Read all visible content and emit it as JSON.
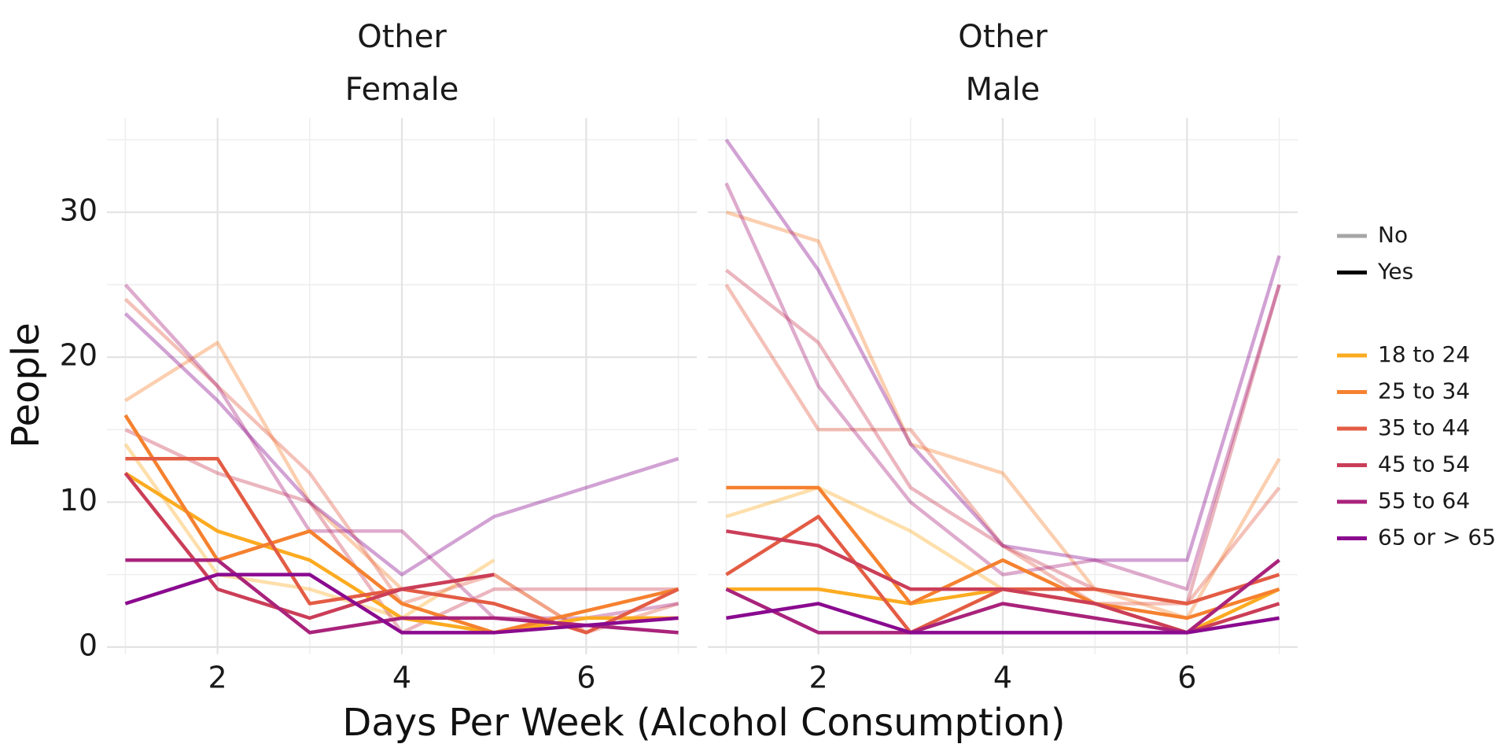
{
  "chart_data": {
    "type": "line",
    "xlabel": "Days Per Week (Alcohol Consumption)",
    "ylabel": "People",
    "x": [
      1,
      2,
      3,
      4,
      5,
      6,
      7
    ],
    "xlim": [
      0.8,
      7.2
    ],
    "ylim": [
      -0.5,
      36.5
    ],
    "x_ticks": [
      2,
      4,
      6
    ],
    "y_ticks": [
      0,
      10,
      20,
      30
    ],
    "grid": true,
    "legend_position": "right",
    "legend_groups": [
      {
        "title": "",
        "items": [
          {
            "label": "No",
            "color": "#a6a6a6"
          },
          {
            "label": "Yes",
            "color": "#000000"
          }
        ]
      },
      {
        "title": "",
        "items": [
          {
            "label": "18 to 24",
            "color": "#fcab21"
          },
          {
            "label": "25 to 34",
            "color": "#f5812f"
          },
          {
            "label": "35 to 44",
            "color": "#e35c44"
          },
          {
            "label": "45 to 54",
            "color": "#cb3e58"
          },
          {
            "label": "55 to 64",
            "color": "#a9237b"
          },
          {
            "label": "65 or > 65",
            "color": "#8a0a8f"
          }
        ]
      }
    ],
    "panels": [
      {
        "strip": [
          "Other",
          "Female"
        ],
        "series": [
          {
            "age": "18 to 24",
            "smoker": "No",
            "values": [
              14,
              5,
              4,
              2,
              6,
              null,
              null
            ]
          },
          {
            "age": "25 to 34",
            "smoker": "No",
            "values": [
              17,
              21,
              10,
              4,
              5,
              1,
              4
            ]
          },
          {
            "age": "35 to 44",
            "smoker": "No",
            "values": [
              24,
              18,
              12,
              3,
              5,
              1,
              3
            ]
          },
          {
            "age": "45 to 54",
            "smoker": "No",
            "values": [
              15,
              12,
              10,
              1,
              4,
              4,
              4
            ]
          },
          {
            "age": "55 to 64",
            "smoker": "No",
            "values": [
              25,
              18,
              8,
              8,
              2,
              2,
              3
            ]
          },
          {
            "age": "65 or > 65",
            "smoker": "No",
            "values": [
              23,
              17,
              10,
              5,
              9,
              11,
              13
            ]
          },
          {
            "age": "18 to 24",
            "smoker": "Yes",
            "values": [
              12,
              8,
              6,
              2,
              1,
              2,
              2
            ]
          },
          {
            "age": "25 to 34",
            "smoker": "Yes",
            "values": [
              16,
              6,
              8,
              3,
              1,
              2.5,
              4
            ]
          },
          {
            "age": "35 to 44",
            "smoker": "Yes",
            "values": [
              13,
              13,
              3,
              4,
              3,
              1,
              4
            ]
          },
          {
            "age": "45 to 54",
            "smoker": "Yes",
            "values": [
              12,
              4,
              2,
              4,
              5,
              null,
              null
            ]
          },
          {
            "age": "55 to 64",
            "smoker": "Yes",
            "values": [
              6,
              6,
              1,
              2,
              2,
              1.5,
              1
            ]
          },
          {
            "age": "65 or > 65",
            "smoker": "Yes",
            "values": [
              3,
              5,
              5,
              1,
              1,
              1.5,
              2
            ]
          }
        ]
      },
      {
        "strip": [
          "Other",
          "Male"
        ],
        "series": [
          {
            "age": "18 to 24",
            "smoker": "No",
            "values": [
              9,
              11,
              8,
              4,
              3,
              1,
              3
            ]
          },
          {
            "age": "25 to 34",
            "smoker": "No",
            "values": [
              30,
              28,
              14,
              12,
              4,
              2,
              13
            ]
          },
          {
            "age": "35 to 44",
            "smoker": "No",
            "values": [
              25,
              15,
              15,
              7,
              3,
              3,
              11
            ]
          },
          {
            "age": "45 to 54",
            "smoker": "No",
            "values": [
              26,
              21,
              11,
              7,
              4,
              3,
              25
            ]
          },
          {
            "age": "55 to 64",
            "smoker": "No",
            "values": [
              32,
              18,
              10,
              5,
              6,
              4,
              25
            ]
          },
          {
            "age": "65 or > 65",
            "smoker": "No",
            "values": [
              35,
              26,
              14,
              7,
              6,
              6,
              27
            ]
          },
          {
            "age": "18 to 24",
            "smoker": "Yes",
            "values": [
              4,
              4,
              3,
              4,
              3,
              1,
              4
            ]
          },
          {
            "age": "25 to 34",
            "smoker": "Yes",
            "values": [
              11,
              11,
              3,
              6,
              3,
              2,
              4
            ]
          },
          {
            "age": "35 to 44",
            "smoker": "Yes",
            "values": [
              5,
              9,
              1,
              4,
              4,
              3,
              5
            ]
          },
          {
            "age": "45 to 54",
            "smoker": "Yes",
            "values": [
              8,
              7,
              4,
              4,
              3,
              1,
              3
            ]
          },
          {
            "age": "55 to 64",
            "smoker": "Yes",
            "values": [
              4,
              1,
              1,
              3,
              2,
              1,
              6
            ]
          },
          {
            "age": "65 or > 65",
            "smoker": "Yes",
            "values": [
              2,
              3,
              1,
              1,
              1,
              1,
              2
            ]
          }
        ]
      }
    ]
  }
}
